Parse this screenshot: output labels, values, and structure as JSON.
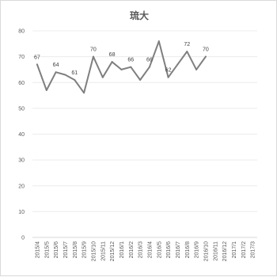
{
  "chart_data": {
    "type": "line",
    "title": "琉大",
    "xlabel": "",
    "ylabel": "",
    "ylim": [
      0,
      80
    ],
    "yticks": [
      0,
      10,
      20,
      30,
      40,
      50,
      60,
      70,
      80
    ],
    "grid": true,
    "legend": "none",
    "line_color": "#7f7f7f",
    "categories": [
      "2015/4",
      "2015/5",
      "2015/6",
      "2015/7",
      "2015/8",
      "2015/9",
      "2015/10",
      "2015/11",
      "2015/12",
      "2016/1",
      "2016/2",
      "2016/3",
      "2016/4",
      "2016/5",
      "2016/6",
      "2016/7",
      "2016/8",
      "2016/9",
      "2016/10",
      "2016/11",
      "2016/12",
      "2017/1",
      "2017/2",
      "2017/3"
    ],
    "series": [
      {
        "values": [
          67,
          57,
          64,
          63,
          61,
          56,
          70,
          62,
          68,
          65,
          66,
          61,
          66,
          76,
          62,
          67,
          72,
          65,
          70,
          null,
          null,
          null,
          null,
          null
        ],
        "data_labels": {
          "0": "67",
          "2": "64",
          "4": "61",
          "6": "70",
          "8": "68",
          "10": "66",
          "12": "66",
          "14": "62",
          "16": "72",
          "18": "70"
        }
      }
    ]
  }
}
